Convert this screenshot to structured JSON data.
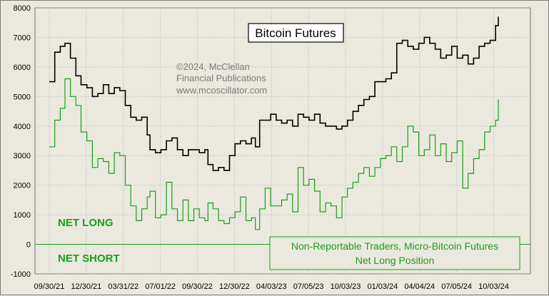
{
  "chart_data": {
    "type": "line",
    "title": "Bitcoin Futures",
    "copyright_lines": [
      "©2024, McClellan",
      "Financial Publications",
      "www.mcoscillator.com"
    ],
    "zone_labels": {
      "above_zero": "NET LONG",
      "below_zero": "NET SHORT"
    },
    "ylim": [
      -1000,
      8000
    ],
    "y_ticks": [
      -1000,
      0,
      1000,
      2000,
      3000,
      4000,
      5000,
      6000,
      7000,
      8000
    ],
    "y_tick_labels": [
      "-1000",
      "0",
      "1000",
      "2000",
      "3000",
      "4000",
      "5000",
      "6000",
      "7000",
      "8000"
    ],
    "x_tick_labels": [
      "09/30/21",
      "12/30/21",
      "03/31/22",
      "07/01/22",
      "09/30/22",
      "12/30/22",
      "04/03/23",
      "07/05/23",
      "10/03/23",
      "01/03/24",
      "04/04/24",
      "07/05/24",
      "10/03/24"
    ],
    "grid": true,
    "colors": {
      "price": "#000000",
      "positioning": "#1a9e1a",
      "grid": "#b0b0b0",
      "background": "#ebe9de"
    },
    "series": [
      {
        "name": "Bitcoin Futures",
        "color": "#000000",
        "x": [
          "2021-09-30",
          "2021-10-14",
          "2021-10-28",
          "2021-11-09",
          "2021-11-23",
          "2021-12-07",
          "2021-12-20",
          "2022-01-04",
          "2022-01-18",
          "2022-02-01",
          "2022-02-15",
          "2022-03-01",
          "2022-03-15",
          "2022-03-29",
          "2022-04-12",
          "2022-04-26",
          "2022-05-10",
          "2022-05-24",
          "2022-06-07",
          "2022-06-14",
          "2022-06-28",
          "2022-07-12",
          "2022-07-26",
          "2022-08-09",
          "2022-08-23",
          "2022-09-06",
          "2022-09-20",
          "2022-10-04",
          "2022-10-18",
          "2022-11-01",
          "2022-11-09",
          "2022-11-22",
          "2022-12-06",
          "2022-12-20",
          "2023-01-03",
          "2023-01-17",
          "2023-01-31",
          "2023-02-14",
          "2023-02-28",
          "2023-03-10",
          "2023-03-21",
          "2023-04-04",
          "2023-04-18",
          "2023-05-02",
          "2023-05-16",
          "2023-05-30",
          "2023-06-13",
          "2023-06-27",
          "2023-07-11",
          "2023-07-25",
          "2023-08-08",
          "2023-08-22",
          "2023-09-05",
          "2023-09-19",
          "2023-10-03",
          "2023-10-17",
          "2023-10-31",
          "2023-11-14",
          "2023-11-28",
          "2023-12-12",
          "2023-12-26",
          "2024-01-09",
          "2024-01-23",
          "2024-02-06",
          "2024-02-20",
          "2024-03-05",
          "2024-03-19",
          "2024-04-02",
          "2024-04-16",
          "2024-04-30",
          "2024-05-14",
          "2024-05-28",
          "2024-06-11",
          "2024-06-25",
          "2024-07-09",
          "2024-07-23",
          "2024-08-06",
          "2024-08-20",
          "2024-09-03",
          "2024-09-17",
          "2024-10-01",
          "2024-10-15",
          "2024-10-29",
          "2024-11-12",
          "2024-11-19"
        ],
        "values": [
          5500,
          6500,
          6700,
          6800,
          6300,
          5700,
          5400,
          5300,
          5000,
          5100,
          5400,
          5100,
          5300,
          5200,
          4700,
          4300,
          4200,
          4300,
          3700,
          3200,
          3100,
          3200,
          3500,
          3600,
          3200,
          3000,
          3200,
          3200,
          3100,
          3200,
          2700,
          2500,
          2600,
          2500,
          3000,
          3400,
          3500,
          3400,
          3600,
          3300,
          4200,
          4200,
          4400,
          4200,
          4100,
          4200,
          4000,
          4400,
          4300,
          4200,
          4400,
          4100,
          4000,
          4000,
          3900,
          4000,
          4200,
          4500,
          4700,
          4900,
          5000,
          5500,
          5500,
          5600,
          5800,
          6800,
          6900,
          6700,
          6600,
          6800,
          7000,
          6800,
          6600,
          6300,
          6400,
          6700,
          6300,
          6400,
          6100,
          6300,
          6700,
          6800,
          6900,
          7400,
          7700
        ]
      },
      {
        "name": "Non-Reportable Traders, Micro-Bitcoin Futures Net Long Position",
        "color": "#1a9e1a",
        "x": [
          "2021-09-30",
          "2021-10-14",
          "2021-10-28",
          "2021-11-09",
          "2021-11-23",
          "2021-12-07",
          "2021-12-20",
          "2022-01-04",
          "2022-01-18",
          "2022-02-01",
          "2022-02-15",
          "2022-03-01",
          "2022-03-15",
          "2022-03-29",
          "2022-04-12",
          "2022-04-26",
          "2022-05-10",
          "2022-05-24",
          "2022-06-07",
          "2022-06-14",
          "2022-06-28",
          "2022-07-12",
          "2022-07-26",
          "2022-08-09",
          "2022-08-23",
          "2022-09-06",
          "2022-09-20",
          "2022-10-04",
          "2022-10-18",
          "2022-11-01",
          "2022-11-09",
          "2022-11-22",
          "2022-12-06",
          "2022-12-20",
          "2023-01-03",
          "2023-01-17",
          "2023-01-31",
          "2023-02-14",
          "2023-02-28",
          "2023-03-10",
          "2023-03-21",
          "2023-04-04",
          "2023-04-18",
          "2023-05-02",
          "2023-05-16",
          "2023-05-30",
          "2023-06-13",
          "2023-06-27",
          "2023-07-11",
          "2023-07-25",
          "2023-08-08",
          "2023-08-22",
          "2023-09-05",
          "2023-09-19",
          "2023-10-03",
          "2023-10-17",
          "2023-10-31",
          "2023-11-14",
          "2023-11-28",
          "2023-12-12",
          "2023-12-26",
          "2024-01-09",
          "2024-01-23",
          "2024-02-06",
          "2024-02-20",
          "2024-03-05",
          "2024-03-19",
          "2024-04-02",
          "2024-04-16",
          "2024-04-30",
          "2024-05-14",
          "2024-05-28",
          "2024-06-11",
          "2024-06-25",
          "2024-07-09",
          "2024-07-23",
          "2024-08-06",
          "2024-08-20",
          "2024-09-03",
          "2024-09-17",
          "2024-10-01",
          "2024-10-15",
          "2024-10-29",
          "2024-11-12",
          "2024-11-19"
        ],
        "values": [
          3300,
          4200,
          4600,
          5600,
          5000,
          4700,
          3800,
          3500,
          2600,
          2900,
          2800,
          2400,
          3100,
          3000,
          2000,
          1300,
          800,
          1200,
          1600,
          1800,
          900,
          1000,
          2100,
          1200,
          800,
          1500,
          800,
          1200,
          900,
          800,
          1400,
          1200,
          800,
          700,
          900,
          1100,
          1600,
          800,
          900,
          500,
          1200,
          1900,
          1300,
          1300,
          1500,
          1700,
          1100,
          2600,
          2000,
          2200,
          1800,
          1100,
          1400,
          1300,
          900,
          1600,
          1900,
          2100,
          2400,
          2600,
          2300,
          2600,
          2900,
          3000,
          3300,
          2800,
          3300,
          4000,
          3800,
          3000,
          3200,
          3700,
          3000,
          3400,
          2800,
          3100,
          3500,
          1900,
          2400,
          2900,
          3200,
          3800,
          4000,
          4200,
          4900
        ]
      }
    ],
    "legend": {
      "text": [
        "Non-Reportable Traders, Micro-Bitcoin Futures",
        "Net Long Position"
      ],
      "placement": "bottom-right"
    }
  }
}
